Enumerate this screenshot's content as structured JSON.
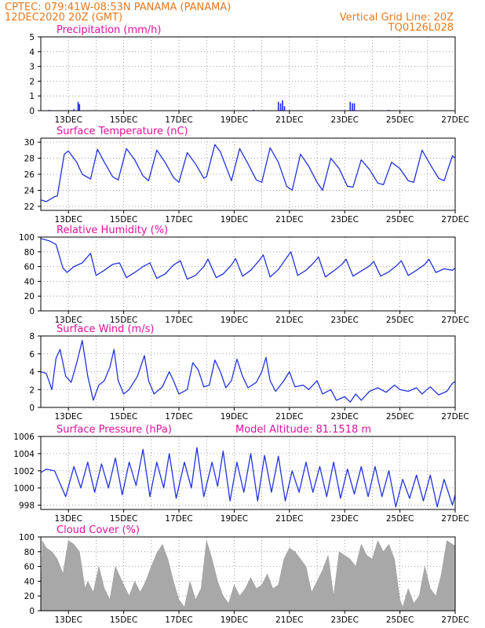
{
  "header": {
    "line1_left": "CPTEC:   079:41W-08:53N   PANAMA (PANAMA)",
    "line2_left": "12DEC2020 20Z (GMT)",
    "line1_right": "Vertical Grid Line: 20Z",
    "line2_right": "TQ0126L028"
  },
  "colors": {
    "line": "#2233dd",
    "bar": "#1b2bef",
    "cloud": "#a8a8a8",
    "title": "#e0119e",
    "header": "#e8791e"
  },
  "x_ticks": [
    "13DEC",
    "15DEC",
    "17DEC",
    "19DEC",
    "21DEC",
    "23DEC",
    "25DEC",
    "27DEC"
  ],
  "chart_data": [
    {
      "id": "precip",
      "type": "bar",
      "title": "Precipitation (mm/h)",
      "ylim": [
        0,
        5
      ],
      "yticks": [
        0,
        1,
        2,
        3,
        4,
        5
      ],
      "points": [
        [
          12.3,
          0.05
        ],
        [
          12.6,
          0.03
        ],
        [
          13.2,
          0.1
        ],
        [
          13.35,
          0.6
        ],
        [
          13.4,
          0.45
        ],
        [
          15.3,
          0.03
        ],
        [
          17.4,
          0.02
        ],
        [
          19.7,
          0.05
        ],
        [
          20.6,
          0.6
        ],
        [
          20.68,
          0.5
        ],
        [
          20.75,
          0.7
        ],
        [
          20.82,
          0.3
        ],
        [
          23.2,
          0.6
        ],
        [
          23.28,
          0.5
        ],
        [
          23.35,
          0.5
        ],
        [
          24.6,
          0.05
        ]
      ]
    },
    {
      "id": "temp",
      "type": "line",
      "title": "Surface Temperature (nC)",
      "ylim": [
        21.5,
        30.5
      ],
      "yticks": [
        22,
        24,
        26,
        28,
        30
      ],
      "points": [
        [
          12.0,
          22.8
        ],
        [
          12.2,
          22.6
        ],
        [
          12.5,
          23.2
        ],
        [
          12.6,
          23.3
        ],
        [
          12.85,
          28.5
        ],
        [
          13.0,
          28.9
        ],
        [
          13.3,
          27.5
        ],
        [
          13.5,
          26.0
        ],
        [
          13.8,
          25.4
        ],
        [
          14.05,
          29.1
        ],
        [
          14.3,
          27.5
        ],
        [
          14.6,
          25.7
        ],
        [
          14.8,
          25.3
        ],
        [
          15.1,
          29.2
        ],
        [
          15.4,
          27.8
        ],
        [
          15.7,
          25.8
        ],
        [
          15.9,
          25.2
        ],
        [
          16.2,
          29.0
        ],
        [
          16.5,
          27.5
        ],
        [
          16.8,
          25.6
        ],
        [
          17.0,
          25.0
        ],
        [
          17.3,
          28.7
        ],
        [
          17.6,
          27.3
        ],
        [
          17.9,
          25.5
        ],
        [
          18.0,
          25.7
        ],
        [
          18.3,
          29.7
        ],
        [
          18.5,
          28.8
        ],
        [
          18.7,
          27.0
        ],
        [
          18.9,
          25.2
        ],
        [
          19.2,
          29.2
        ],
        [
          19.5,
          27.3
        ],
        [
          19.8,
          25.3
        ],
        [
          20.0,
          25.0
        ],
        [
          20.3,
          29.3
        ],
        [
          20.6,
          27.5
        ],
        [
          20.9,
          24.5
        ],
        [
          21.1,
          24.0
        ],
        [
          21.4,
          28.5
        ],
        [
          21.7,
          27.0
        ],
        [
          22.0,
          25.0
        ],
        [
          22.2,
          24.0
        ],
        [
          22.5,
          28.0
        ],
        [
          22.8,
          26.7
        ],
        [
          23.1,
          24.5
        ],
        [
          23.3,
          24.4
        ],
        [
          23.6,
          27.8
        ],
        [
          23.9,
          26.6
        ],
        [
          24.2,
          24.9
        ],
        [
          24.4,
          24.7
        ],
        [
          24.7,
          27.5
        ],
        [
          25.0,
          26.7
        ],
        [
          25.3,
          25.2
        ],
        [
          25.5,
          25.0
        ],
        [
          25.8,
          29.0
        ],
        [
          26.1,
          27.2
        ],
        [
          26.4,
          25.5
        ],
        [
          26.6,
          25.2
        ],
        [
          26.9,
          28.3
        ],
        [
          27.0,
          28.0
        ]
      ]
    },
    {
      "id": "rh",
      "type": "line",
      "title": "Relative Humidity (%)",
      "ylim": [
        0,
        100
      ],
      "yticks": [
        0,
        20,
        40,
        60,
        80,
        100
      ],
      "points": [
        [
          12.0,
          98
        ],
        [
          12.3,
          95
        ],
        [
          12.55,
          90
        ],
        [
          12.8,
          58
        ],
        [
          12.95,
          52
        ],
        [
          13.2,
          60
        ],
        [
          13.5,
          65
        ],
        [
          13.8,
          78
        ],
        [
          14.0,
          48
        ],
        [
          14.3,
          55
        ],
        [
          14.6,
          63
        ],
        [
          14.85,
          65
        ],
        [
          15.1,
          45
        ],
        [
          15.4,
          52
        ],
        [
          15.7,
          60
        ],
        [
          15.95,
          65
        ],
        [
          16.2,
          44
        ],
        [
          16.5,
          50
        ],
        [
          16.8,
          62
        ],
        [
          17.05,
          68
        ],
        [
          17.3,
          43
        ],
        [
          17.6,
          48
        ],
        [
          17.9,
          60
        ],
        [
          18.05,
          70
        ],
        [
          18.35,
          45
        ],
        [
          18.6,
          50
        ],
        [
          18.9,
          62
        ],
        [
          19.05,
          71
        ],
        [
          19.3,
          47
        ],
        [
          19.6,
          55
        ],
        [
          19.9,
          68
        ],
        [
          20.05,
          76
        ],
        [
          20.3,
          46
        ],
        [
          20.6,
          56
        ],
        [
          20.9,
          72
        ],
        [
          21.05,
          80
        ],
        [
          21.3,
          48
        ],
        [
          21.6,
          55
        ],
        [
          21.9,
          66
        ],
        [
          22.05,
          73
        ],
        [
          22.3,
          46
        ],
        [
          22.6,
          54
        ],
        [
          22.9,
          63
        ],
        [
          23.05,
          70
        ],
        [
          23.3,
          47
        ],
        [
          23.6,
          54
        ],
        [
          23.9,
          61
        ],
        [
          24.05,
          67
        ],
        [
          24.3,
          47
        ],
        [
          24.6,
          53
        ],
        [
          24.9,
          62
        ],
        [
          25.05,
          68
        ],
        [
          25.3,
          48
        ],
        [
          25.6,
          55
        ],
        [
          25.9,
          63
        ],
        [
          26.05,
          70
        ],
        [
          26.3,
          52
        ],
        [
          26.6,
          57
        ],
        [
          26.9,
          55
        ],
        [
          27.0,
          58
        ]
      ]
    },
    {
      "id": "wind",
      "type": "line",
      "title": "Surface Wind (m/s)",
      "ylim": [
        0,
        8
      ],
      "yticks": [
        0,
        2,
        4,
        6,
        8
      ],
      "points": [
        [
          12.0,
          4.0
        ],
        [
          12.2,
          3.8
        ],
        [
          12.4,
          2.0
        ],
        [
          12.55,
          5.5
        ],
        [
          12.7,
          6.5
        ],
        [
          12.9,
          3.5
        ],
        [
          13.1,
          2.8
        ],
        [
          13.3,
          5.0
        ],
        [
          13.5,
          7.5
        ],
        [
          13.7,
          3.5
        ],
        [
          13.9,
          0.8
        ],
        [
          14.1,
          2.5
        ],
        [
          14.3,
          3.0
        ],
        [
          14.5,
          4.5
        ],
        [
          14.65,
          6.5
        ],
        [
          14.8,
          3.0
        ],
        [
          15.0,
          1.5
        ],
        [
          15.2,
          2.0
        ],
        [
          15.5,
          3.5
        ],
        [
          15.75,
          5.8
        ],
        [
          15.9,
          3.0
        ],
        [
          16.1,
          1.5
        ],
        [
          16.4,
          2.3
        ],
        [
          16.65,
          4.0
        ],
        [
          16.8,
          3.0
        ],
        [
          17.0,
          1.5
        ],
        [
          17.3,
          2.0
        ],
        [
          17.5,
          5.0
        ],
        [
          17.7,
          4.2
        ],
        [
          17.9,
          2.3
        ],
        [
          18.1,
          2.5
        ],
        [
          18.3,
          5.3
        ],
        [
          18.5,
          4.0
        ],
        [
          18.7,
          2.2
        ],
        [
          18.9,
          3.0
        ],
        [
          19.1,
          5.4
        ],
        [
          19.3,
          3.5
        ],
        [
          19.5,
          2.2
        ],
        [
          19.8,
          2.8
        ],
        [
          20.0,
          4.0
        ],
        [
          20.15,
          5.6
        ],
        [
          20.3,
          3.0
        ],
        [
          20.5,
          1.8
        ],
        [
          20.8,
          3.0
        ],
        [
          21.0,
          4.0
        ],
        [
          21.2,
          2.3
        ],
        [
          21.5,
          2.5
        ],
        [
          21.7,
          2.0
        ],
        [
          22.0,
          3.0
        ],
        [
          22.2,
          1.5
        ],
        [
          22.5,
          2.0
        ],
        [
          22.7,
          0.8
        ],
        [
          23.0,
          1.2
        ],
        [
          23.2,
          0.6
        ],
        [
          23.4,
          1.5
        ],
        [
          23.6,
          0.8
        ],
        [
          23.9,
          1.8
        ],
        [
          24.2,
          2.2
        ],
        [
          24.5,
          1.7
        ],
        [
          24.8,
          2.5
        ],
        [
          25.0,
          2.0
        ],
        [
          25.3,
          1.8
        ],
        [
          25.6,
          2.2
        ],
        [
          25.8,
          1.5
        ],
        [
          26.1,
          2.3
        ],
        [
          26.4,
          1.4
        ],
        [
          26.7,
          1.8
        ],
        [
          26.9,
          2.7
        ],
        [
          27.0,
          2.9
        ]
      ]
    },
    {
      "id": "pres",
      "type": "line",
      "title": "Surface Pressure (hPa)",
      "annotation": "Model Altitude: 81.1518 m",
      "ylim": [
        997.5,
        1006
      ],
      "yticks": [
        998,
        1000,
        1002,
        1004,
        1006
      ],
      "points": [
        [
          12.0,
          1001.8
        ],
        [
          12.2,
          1002.2
        ],
        [
          12.5,
          1002.0
        ],
        [
          12.7,
          1000.5
        ],
        [
          12.9,
          999.0
        ],
        [
          13.2,
          1002.5
        ],
        [
          13.45,
          1000.0
        ],
        [
          13.7,
          1003.0
        ],
        [
          13.95,
          999.5
        ],
        [
          14.2,
          1002.8
        ],
        [
          14.45,
          1000.0
        ],
        [
          14.7,
          1003.5
        ],
        [
          14.95,
          999.2
        ],
        [
          15.2,
          1003.0
        ],
        [
          15.45,
          1000.3
        ],
        [
          15.7,
          1004.5
        ],
        [
          15.95,
          999.0
        ],
        [
          16.2,
          1003.0
        ],
        [
          16.45,
          1000.0
        ],
        [
          16.65,
          1004.0
        ],
        [
          16.9,
          998.8
        ],
        [
          17.2,
          1003.0
        ],
        [
          17.45,
          1000.0
        ],
        [
          17.65,
          1004.7
        ],
        [
          17.9,
          999.0
        ],
        [
          18.2,
          1003.0
        ],
        [
          18.4,
          1000.2
        ],
        [
          18.6,
          1004.3
        ],
        [
          18.85,
          998.5
        ],
        [
          19.1,
          1003.0
        ],
        [
          19.35,
          999.5
        ],
        [
          19.6,
          1004.0
        ],
        [
          19.85,
          998.5
        ],
        [
          20.1,
          1003.8
        ],
        [
          20.35,
          999.5
        ],
        [
          20.6,
          1003.7
        ],
        [
          20.85,
          998.5
        ],
        [
          21.1,
          1002.0
        ],
        [
          21.35,
          999.5
        ],
        [
          21.6,
          1003.0
        ],
        [
          21.85,
          999.5
        ],
        [
          22.1,
          1002.5
        ],
        [
          22.35,
          999.0
        ],
        [
          22.6,
          1003.0
        ],
        [
          22.85,
          998.8
        ],
        [
          23.1,
          1002.2
        ],
        [
          23.35,
          999.3
        ],
        [
          23.6,
          1002.5
        ],
        [
          23.85,
          999.0
        ],
        [
          24.1,
          1002.5
        ],
        [
          24.35,
          999.0
        ],
        [
          24.6,
          1002.0
        ],
        [
          24.85,
          997.8
        ],
        [
          25.1,
          1001.0
        ],
        [
          25.35,
          998.8
        ],
        [
          25.6,
          1001.5
        ],
        [
          25.85,
          998.5
        ],
        [
          26.1,
          1001.5
        ],
        [
          26.35,
          997.8
        ],
        [
          26.6,
          1001.0
        ],
        [
          26.9,
          998.0
        ],
        [
          27.0,
          999.2
        ]
      ]
    },
    {
      "id": "cloud",
      "type": "area",
      "title": "Cloud Cover (%)",
      "ylim": [
        0,
        100
      ],
      "yticks": [
        0,
        20,
        40,
        60,
        80,
        100
      ],
      "points": [
        [
          12.0,
          0
        ],
        [
          12.05,
          95
        ],
        [
          12.2,
          85
        ],
        [
          12.4,
          80
        ],
        [
          12.6,
          70
        ],
        [
          12.8,
          50
        ],
        [
          13.0,
          95
        ],
        [
          13.2,
          90
        ],
        [
          13.4,
          80
        ],
        [
          13.5,
          55
        ],
        [
          13.6,
          30
        ],
        [
          13.7,
          40
        ],
        [
          13.9,
          25
        ],
        [
          14.1,
          60
        ],
        [
          14.3,
          30
        ],
        [
          14.5,
          15
        ],
        [
          14.7,
          60
        ],
        [
          15.0,
          35
        ],
        [
          15.2,
          20
        ],
        [
          15.4,
          40
        ],
        [
          15.6,
          25
        ],
        [
          15.8,
          40
        ],
        [
          16.0,
          60
        ],
        [
          16.2,
          78
        ],
        [
          16.4,
          90
        ],
        [
          16.6,
          70
        ],
        [
          16.8,
          40
        ],
        [
          17.0,
          15
        ],
        [
          17.2,
          5
        ],
        [
          17.4,
          40
        ],
        [
          17.6,
          15
        ],
        [
          17.8,
          30
        ],
        [
          18.0,
          95
        ],
        [
          18.2,
          70
        ],
        [
          18.4,
          40
        ],
        [
          18.6,
          20
        ],
        [
          18.8,
          10
        ],
        [
          19.0,
          35
        ],
        [
          19.2,
          20
        ],
        [
          19.4,
          30
        ],
        [
          19.6,
          45
        ],
        [
          19.8,
          30
        ],
        [
          20.0,
          35
        ],
        [
          20.2,
          50
        ],
        [
          20.4,
          30
        ],
        [
          20.6,
          35
        ],
        [
          20.8,
          70
        ],
        [
          21.0,
          85
        ],
        [
          21.2,
          80
        ],
        [
          21.4,
          70
        ],
        [
          21.6,
          60
        ],
        [
          21.8,
          25
        ],
        [
          22.0,
          40
        ],
        [
          22.2,
          55
        ],
        [
          22.4,
          75
        ],
        [
          22.6,
          20
        ],
        [
          22.8,
          80
        ],
        [
          23.0,
          75
        ],
        [
          23.2,
          70
        ],
        [
          23.4,
          60
        ],
        [
          23.6,
          90
        ],
        [
          23.8,
          75
        ],
        [
          24.0,
          70
        ],
        [
          24.2,
          95
        ],
        [
          24.4,
          80
        ],
        [
          24.6,
          90
        ],
        [
          24.8,
          70
        ],
        [
          25.0,
          15
        ],
        [
          25.1,
          5
        ],
        [
          25.3,
          30
        ],
        [
          25.5,
          10
        ],
        [
          25.7,
          20
        ],
        [
          25.9,
          60
        ],
        [
          26.1,
          30
        ],
        [
          26.3,
          20
        ],
        [
          26.5,
          50
        ],
        [
          26.7,
          95
        ],
        [
          26.9,
          90
        ],
        [
          27.0,
          88
        ]
      ]
    }
  ]
}
